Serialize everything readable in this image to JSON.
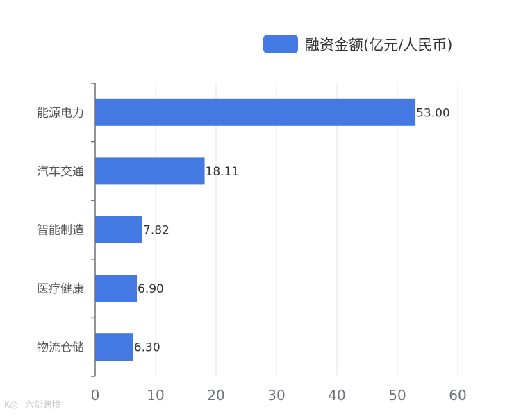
{
  "chart_data": {
    "type": "bar",
    "orientation": "horizontal",
    "categories": [
      "能源电力",
      "汽车交通",
      "智能制造",
      "医疗健康",
      "物流仓储"
    ],
    "series": [
      {
        "name": "融资金额(亿元/人民币)",
        "values": [
          53.0,
          18.11,
          7.82,
          6.9,
          6.3
        ],
        "labels": [
          "53.00",
          "18.11",
          "7.82",
          "6.90",
          "6.30"
        ],
        "color": "#4479e4"
      }
    ],
    "xlim": [
      0,
      60
    ],
    "xticks": [
      "0",
      "10",
      "20",
      "30",
      "40",
      "50",
      "60"
    ],
    "grid": true,
    "legend_position": "top-right"
  },
  "watermark": {
    "text": "六部跨境"
  }
}
